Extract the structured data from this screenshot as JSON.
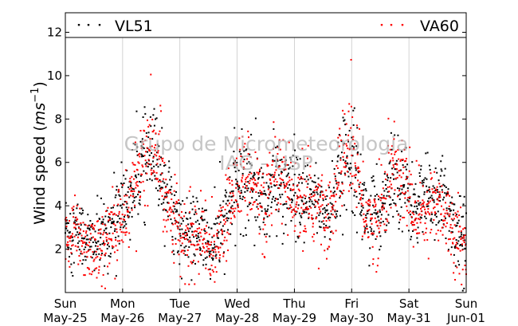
{
  "chart_data": {
    "type": "scatter",
    "ylabel": "Wind speed (",
    "ylabel_unit_main": "ms",
    "ylabel_unit_exp": "−1",
    "ylabel_close": ")",
    "ylim": [
      0,
      12.9
    ],
    "yticks": [
      2,
      4,
      6,
      8,
      10,
      12
    ],
    "x_ticks": [
      {
        "day": "Sun",
        "date": "May-25"
      },
      {
        "day": "Mon",
        "date": "May-26"
      },
      {
        "day": "Tue",
        "date": "May-27"
      },
      {
        "day": "Wed",
        "date": "May-28"
      },
      {
        "day": "Thu",
        "date": "May-29"
      },
      {
        "day": "Fri",
        "date": "May-30"
      },
      {
        "day": "Sat",
        "date": "May-31"
      },
      {
        "day": "Sun",
        "date": "Jun-01"
      }
    ],
    "grid": "vertical",
    "legend": "top",
    "watermark_lines": [
      "Grupo de Micrometeorologia",
      "IAG - USP"
    ],
    "series": [
      {
        "name": "VL51",
        "color": "#000000",
        "daily_mean_profile": [
          {
            "x": 0.0,
            "y": 3.0
          },
          {
            "x": 0.25,
            "y": 2.8
          },
          {
            "x": 0.45,
            "y": 2.3
          },
          {
            "x": 0.7,
            "y": 2.6
          },
          {
            "x": 0.9,
            "y": 3.6
          },
          {
            "x": 1.1,
            "y": 4.3
          },
          {
            "x": 1.35,
            "y": 6.0
          },
          {
            "x": 1.6,
            "y": 6.2
          },
          {
            "x": 1.8,
            "y": 4.5
          },
          {
            "x": 2.05,
            "y": 2.6
          },
          {
            "x": 2.3,
            "y": 2.8
          },
          {
            "x": 2.55,
            "y": 2.1
          },
          {
            "x": 2.75,
            "y": 3.0
          },
          {
            "x": 3.0,
            "y": 5.0
          },
          {
            "x": 3.25,
            "y": 5.4
          },
          {
            "x": 3.45,
            "y": 4.0
          },
          {
            "x": 3.7,
            "y": 5.2
          },
          {
            "x": 3.95,
            "y": 4.5
          },
          {
            "x": 4.15,
            "y": 4.0
          },
          {
            "x": 4.4,
            "y": 4.4
          },
          {
            "x": 4.6,
            "y": 3.4
          },
          {
            "x": 4.8,
            "y": 5.5
          },
          {
            "x": 5.0,
            "y": 6.8
          },
          {
            "x": 5.2,
            "y": 4.0
          },
          {
            "x": 5.45,
            "y": 3.2
          },
          {
            "x": 5.7,
            "y": 5.6
          },
          {
            "x": 5.9,
            "y": 5.0
          },
          {
            "x": 6.1,
            "y": 3.8
          },
          {
            "x": 6.3,
            "y": 4.3
          },
          {
            "x": 6.55,
            "y": 4.5
          },
          {
            "x": 6.8,
            "y": 3.0
          },
          {
            "x": 7.0,
            "y": 2.4
          }
        ]
      },
      {
        "name": "VA60",
        "color": "#ff0000",
        "daily_mean_profile": [
          {
            "x": 0.0,
            "y": 2.9
          },
          {
            "x": 0.25,
            "y": 2.6
          },
          {
            "x": 0.45,
            "y": 2.0
          },
          {
            "x": 0.7,
            "y": 2.4
          },
          {
            "x": 0.9,
            "y": 3.3
          },
          {
            "x": 1.1,
            "y": 4.0
          },
          {
            "x": 1.35,
            "y": 6.2
          },
          {
            "x": 1.6,
            "y": 6.4
          },
          {
            "x": 1.8,
            "y": 4.2
          },
          {
            "x": 2.05,
            "y": 2.3
          },
          {
            "x": 2.3,
            "y": 2.6
          },
          {
            "x": 2.55,
            "y": 1.9
          },
          {
            "x": 2.75,
            "y": 2.8
          },
          {
            "x": 3.0,
            "y": 5.2
          },
          {
            "x": 3.25,
            "y": 5.6
          },
          {
            "x": 3.45,
            "y": 3.8
          },
          {
            "x": 3.7,
            "y": 5.4
          },
          {
            "x": 3.95,
            "y": 4.3
          },
          {
            "x": 4.15,
            "y": 3.8
          },
          {
            "x": 4.4,
            "y": 4.2
          },
          {
            "x": 4.6,
            "y": 3.2
          },
          {
            "x": 4.8,
            "y": 5.8
          },
          {
            "x": 5.0,
            "y": 7.0
          },
          {
            "x": 5.2,
            "y": 3.8
          },
          {
            "x": 5.45,
            "y": 3.0
          },
          {
            "x": 5.7,
            "y": 5.8
          },
          {
            "x": 5.9,
            "y": 5.2
          },
          {
            "x": 6.1,
            "y": 3.6
          },
          {
            "x": 6.3,
            "y": 4.0
          },
          {
            "x": 6.55,
            "y": 4.2
          },
          {
            "x": 6.8,
            "y": 2.7
          },
          {
            "x": 7.0,
            "y": 2.2
          }
        ]
      }
    ]
  }
}
